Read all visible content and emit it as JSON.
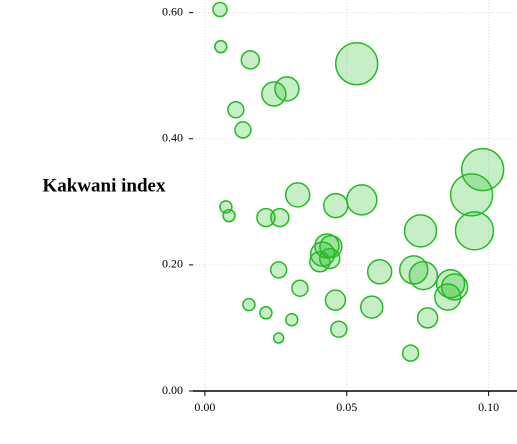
{
  "chart_data": {
    "type": "bubble",
    "y_label": "Kakwani index",
    "color": "#22bb22",
    "x": [
      0.0053,
      0.0056,
      0.016,
      0.0535,
      0.0289,
      0.0243,
      0.0109,
      0.0134,
      0.0979,
      0.094,
      0.0327,
      0.0553,
      0.0461,
      0.0074,
      0.0085,
      0.0215,
      0.0264,
      0.076,
      0.095,
      0.043,
      0.0444,
      0.0415,
      0.044,
      0.0405,
      0.0616,
      0.0736,
      0.077,
      0.0866,
      0.088,
      0.0856,
      0.026,
      0.0335,
      0.046,
      0.0588,
      0.0785,
      0.0155,
      0.0215,
      0.0306,
      0.0472,
      0.0725,
      0.026
    ],
    "values": [
      0.605,
      0.546,
      0.525,
      0.519,
      0.479,
      0.471,
      0.446,
      0.414,
      0.351,
      0.311,
      0.311,
      0.303,
      0.294,
      0.292,
      0.278,
      0.275,
      0.275,
      0.254,
      0.254,
      0.23,
      0.229,
      0.217,
      0.21,
      0.205,
      0.189,
      0.192,
      0.183,
      0.17,
      0.165,
      0.149,
      0.192,
      0.163,
      0.144,
      0.133,
      0.116,
      0.137,
      0.124,
      0.113,
      0.098,
      0.06,
      0.084
    ],
    "sizes": [
      7,
      6,
      9,
      21,
      12,
      12,
      8,
      8,
      21,
      21,
      12,
      15,
      12,
      6,
      6,
      9,
      9,
      16,
      19,
      12,
      11,
      12,
      10,
      10,
      12,
      14,
      14,
      14,
      13,
      13,
      8,
      8,
      10,
      11,
      10,
      6,
      6,
      6,
      8,
      8,
      5
    ],
    "xlim": [
      -0.0042,
      0.11
    ],
    "ylim": [
      0,
      0.62
    ],
    "xticks": [
      {
        "value": 0,
        "label": "0.00"
      },
      {
        "value": 0.05,
        "label": "0.05"
      },
      {
        "value": 0.1,
        "label": "0.10"
      }
    ],
    "yticks": [
      {
        "value": 0,
        "label": "0.00"
      },
      {
        "value": 0.2,
        "label": "0.20"
      },
      {
        "value": 0.4,
        "label": "0.40"
      },
      {
        "value": 0.6,
        "label": "0.60"
      }
    ],
    "grid": true
  }
}
